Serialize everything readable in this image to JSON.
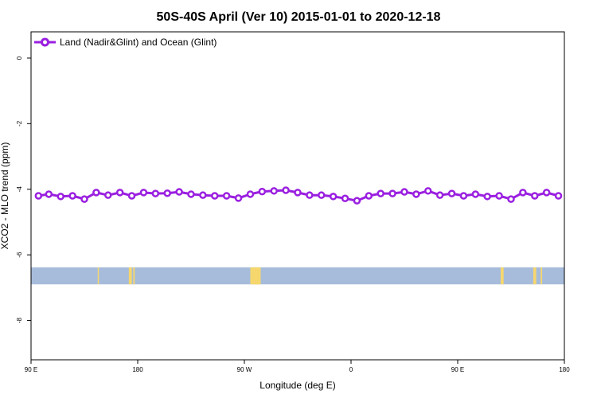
{
  "chart_data": {
    "type": "line",
    "title": "50S-40S April (Ver 10)   2015-01-01 to 2020-12-18",
    "xlabel": "Longitude (deg E)",
    "ylabel": "XCO2 - MLO trend (ppm)",
    "xlim": [
      90,
      450
    ],
    "ylim": [
      -9.2,
      0.8
    ],
    "x_ticks": [
      {
        "value": 90,
        "label": "90 E"
      },
      {
        "value": 162,
        "label": "180"
      },
      {
        "value": 234,
        "label": "90 W"
      },
      {
        "value": 306,
        "label": "0"
      },
      {
        "value": 378,
        "label": "90 E"
      },
      {
        "value": 450,
        "label": "180"
      }
    ],
    "y_ticks": [
      {
        "value": 0,
        "label": "0"
      },
      {
        "value": -2,
        "label": "-2"
      },
      {
        "value": -4,
        "label": "-4"
      },
      {
        "value": -6,
        "label": "-6"
      },
      {
        "value": -8,
        "label": "-8"
      }
    ],
    "legend": {
      "position": "top-left"
    },
    "series": [
      {
        "name": "Land (Nadir&Glint) and Ocean (Glint)",
        "color": "#9a1fe0",
        "x": [
          95,
          102,
          110,
          118,
          126,
          134,
          142,
          150,
          158,
          166,
          174,
          182,
          190,
          198,
          206,
          214,
          222,
          230,
          238,
          246,
          254,
          262,
          270,
          278,
          286,
          294,
          302,
          310,
          318,
          326,
          334,
          342,
          350,
          358,
          366,
          374,
          382,
          390,
          398,
          406,
          414,
          422,
          430,
          438,
          446
        ],
        "y": [
          -4.2,
          -4.15,
          -4.22,
          -4.2,
          -4.3,
          -4.1,
          -4.18,
          -4.1,
          -4.2,
          -4.1,
          -4.13,
          -4.12,
          -4.08,
          -4.15,
          -4.18,
          -4.2,
          -4.2,
          -4.27,
          -4.15,
          -4.07,
          -4.05,
          -4.03,
          -4.1,
          -4.18,
          -4.18,
          -4.22,
          -4.28,
          -4.35,
          -4.2,
          -4.13,
          -4.13,
          -4.08,
          -4.15,
          -4.05,
          -4.18,
          -4.13,
          -4.2,
          -4.15,
          -4.22,
          -4.2,
          -4.3,
          -4.1,
          -4.2,
          -4.1,
          -4.2
        ]
      }
    ],
    "map_strip": {
      "y_range": [
        -6.9,
        -6.38
      ],
      "ocean_color": "#a7bcdb",
      "land_color": "#f5d76e",
      "land_x": [
        [
          135,
          135.8
        ],
        [
          156,
          158
        ],
        [
          159,
          160
        ],
        [
          238,
          245
        ],
        [
          240,
          244
        ],
        [
          407,
          409
        ],
        [
          429,
          431
        ],
        [
          434,
          435
        ]
      ]
    }
  }
}
